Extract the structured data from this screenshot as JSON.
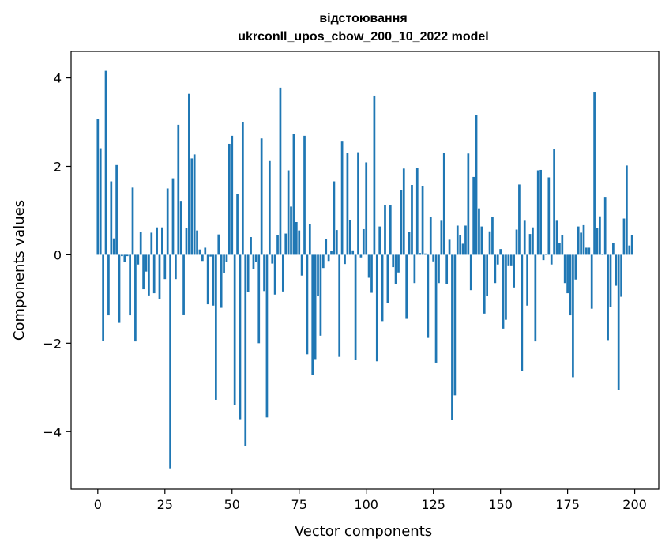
{
  "chart_data": {
    "type": "bar",
    "title_line1": "відстоювання",
    "title_line2": "ukrconll_upos_cbow_200_10_2022 model",
    "xlabel": "Vector components",
    "ylabel": "Components values",
    "xlim": [
      -9.95,
      208.95
    ],
    "ylim": [
      -5.3,
      4.6
    ],
    "xticks": [
      0,
      25,
      50,
      75,
      100,
      125,
      150,
      175,
      200
    ],
    "xtick_labels": [
      "0",
      "25",
      "50",
      "75",
      "100",
      "125",
      "150",
      "175",
      "200"
    ],
    "yticks": [
      -4,
      -2,
      0,
      2,
      4
    ],
    "ytick_labels": [
      "−4",
      "−2",
      "0",
      "2",
      "4"
    ],
    "bar_color": "#1f77b4",
    "grid": false,
    "x": [
      0,
      1,
      2,
      3,
      4,
      5,
      6,
      7,
      8,
      9,
      10,
      11,
      12,
      13,
      14,
      15,
      16,
      17,
      18,
      19,
      20,
      21,
      22,
      23,
      24,
      25,
      26,
      27,
      28,
      29,
      30,
      31,
      32,
      33,
      34,
      35,
      36,
      37,
      38,
      39,
      40,
      41,
      42,
      43,
      44,
      45,
      46,
      47,
      48,
      49,
      50,
      51,
      52,
      53,
      54,
      55,
      56,
      57,
      58,
      59,
      60,
      61,
      62,
      63,
      64,
      65,
      66,
      67,
      68,
      69,
      70,
      71,
      72,
      73,
      74,
      75,
      76,
      77,
      78,
      79,
      80,
      81,
      82,
      83,
      84,
      85,
      86,
      87,
      88,
      89,
      90,
      91,
      92,
      93,
      94,
      95,
      96,
      97,
      98,
      99,
      100,
      101,
      102,
      103,
      104,
      105,
      106,
      107,
      108,
      109,
      110,
      111,
      112,
      113,
      114,
      115,
      116,
      117,
      118,
      119,
      120,
      121,
      122,
      123,
      124,
      125,
      126,
      127,
      128,
      129,
      130,
      131,
      132,
      133,
      134,
      135,
      136,
      137,
      138,
      139,
      140,
      141,
      142,
      143,
      144,
      145,
      146,
      147,
      148,
      149,
      150,
      151,
      152,
      153,
      154,
      155,
      156,
      157,
      158,
      159,
      160,
      161,
      162,
      163,
      164,
      165,
      166,
      167,
      168,
      169,
      170,
      171,
      172,
      173,
      174,
      175,
      176,
      177,
      178,
      179,
      180,
      181,
      182,
      183,
      184,
      185,
      186,
      187,
      188,
      189,
      190,
      191,
      192,
      193,
      194,
      195,
      196,
      197,
      198,
      199
    ],
    "values": [
      3.08,
      2.41,
      -1.95,
      4.16,
      -1.37,
      1.66,
      0.37,
      2.03,
      -1.54,
      -0.03,
      -0.17,
      -0.03,
      -1.37,
      1.52,
      -1.96,
      -0.22,
      0.52,
      -0.78,
      -0.38,
      -0.92,
      0.5,
      -0.87,
      0.62,
      -1.0,
      0.62,
      -0.55,
      1.5,
      -4.83,
      1.73,
      -0.55,
      2.94,
      1.22,
      -1.35,
      0.6,
      3.64,
      2.18,
      2.27,
      0.55,
      0.12,
      -0.14,
      0.16,
      -1.12,
      -0.04,
      -1.15,
      -3.28,
      0.46,
      -1.2,
      -0.42,
      -0.17,
      2.51,
      2.69,
      -3.39,
      1.37,
      -3.72,
      3.0,
      -4.33,
      -0.84,
      0.4,
      -0.33,
      -0.16,
      -2.0,
      2.63,
      -0.82,
      -3.68,
      2.12,
      -0.2,
      -0.9,
      0.45,
      3.78,
      -0.83,
      0.48,
      1.91,
      1.09,
      2.73,
      0.74,
      0.55,
      -0.47,
      2.69,
      -2.25,
      0.7,
      -2.72,
      -2.36,
      -0.94,
      -1.83,
      -0.3,
      0.35,
      -0.14,
      0.09,
      1.66,
      0.56,
      -2.31,
      2.56,
      -0.21,
      2.3,
      0.79,
      0.1,
      -2.38,
      2.32,
      -0.06,
      0.58,
      2.09,
      -0.52,
      -0.86,
      3.6,
      -2.41,
      0.64,
      -1.5,
      1.12,
      -1.09,
      1.13,
      -0.28,
      -0.66,
      -0.4,
      1.46,
      1.95,
      -1.45,
      0.51,
      1.58,
      -0.64,
      1.97,
      0.04,
      1.56,
      0.03,
      -1.88,
      0.85,
      -0.15,
      -2.44,
      -0.64,
      0.77,
      2.3,
      -0.66,
      0.34,
      -3.74,
      -3.18,
      0.66,
      0.44,
      0.25,
      0.66,
      2.29,
      -0.8,
      1.76,
      3.16,
      1.05,
      0.64,
      -1.33,
      -0.94,
      0.53,
      0.85,
      -0.64,
      -0.22,
      0.13,
      -1.67,
      -1.47,
      -0.24,
      -0.24,
      -0.74,
      0.57,
      1.59,
      -2.62,
      0.77,
      -1.15,
      0.47,
      0.62,
      -1.96,
      1.91,
      1.92,
      -0.12,
      0.02,
      1.75,
      -0.22,
      2.39,
      0.77,
      0.27,
      0.45,
      -0.64,
      -0.87,
      -1.37,
      -2.77,
      -0.56,
      0.64,
      0.5,
      0.67,
      0.16,
      0.16,
      -1.22,
      3.67,
      0.61,
      0.87,
      0.01,
      1.31,
      -1.93,
      -1.18,
      0.27,
      -0.7,
      -3.05,
      -0.95,
      0.82,
      2.02,
      0.21,
      0.45
    ]
  }
}
